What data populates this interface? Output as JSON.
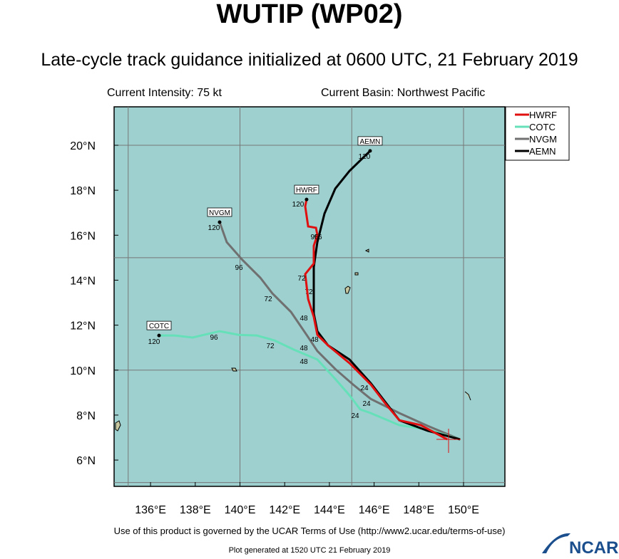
{
  "title": "WUTIP (WP02)",
  "subtitle": "Late-cycle track guidance initialized at 0600 UTC, 21 February 2019",
  "intensity": "Current Intensity: 75 kt",
  "basin": "Current Basin: Northwest Pacific",
  "footer": "Use of this product is governed by the UCAR Terms of Use (http://www2.ucar.edu/terms-of-use)",
  "generated": "Plot generated at 1520 UTC  21 February 2019",
  "logo": "NCAR",
  "map": {
    "xlim": [
      134.37,
      151.85
    ],
    "ylim": [
      4.83,
      21.71
    ],
    "xticks": [
      {
        "value": 136,
        "label": "136°E"
      },
      {
        "value": 138,
        "label": "138°E"
      },
      {
        "value": 140,
        "label": "140°E"
      },
      {
        "value": 142,
        "label": "142°E"
      },
      {
        "value": 144,
        "label": "144°E"
      },
      {
        "value": 146,
        "label": "146°E"
      },
      {
        "value": 148,
        "label": "148°E"
      },
      {
        "value": 150,
        "label": "150°E"
      }
    ],
    "yticks": [
      {
        "value": 6,
        "label": "6°N"
      },
      {
        "value": 8,
        "label": "8°N"
      },
      {
        "value": 10,
        "label": "10°N"
      },
      {
        "value": 12,
        "label": "12°N"
      },
      {
        "value": 14,
        "label": "14°N"
      },
      {
        "value": 16,
        "label": "16°N"
      },
      {
        "value": 18,
        "label": "18°N"
      },
      {
        "value": 20,
        "label": "20°N"
      }
    ],
    "grid_lons": [
      135,
      140,
      145,
      150
    ],
    "grid_lats": [
      5,
      10,
      15,
      20
    ],
    "tracks": [
      {
        "name": "HWRF",
        "color": "#e01010",
        "lon": [
          149.27,
          148.09,
          147.13,
          146.49,
          145.85,
          144.9,
          143.94,
          143.46,
          143.3,
          143.05,
          142.92,
          143.3,
          143.3,
          143.46,
          143.4,
          143.05,
          142.92,
          142.98
        ],
        "lat": [
          6.92,
          7.55,
          7.77,
          8.53,
          9.36,
          10.31,
          11.1,
          11.57,
          12.37,
          13.16,
          14.27,
          14.74,
          15.53,
          16.01,
          16.33,
          16.39,
          17.28,
          17.59
        ],
        "hour_labels": [
          "120",
          "96",
          "72",
          "48"
        ]
      },
      {
        "name": "COTC",
        "color": "#66e0b8",
        "lon": [
          149.84,
          148.4,
          147.13,
          145.85,
          145.38,
          144.9,
          144.26,
          143.46,
          142.41,
          141.55,
          140.75,
          139.95,
          139.09,
          137.88,
          137.08,
          136.38
        ],
        "lat": [
          6.92,
          7.36,
          7.55,
          8.09,
          8.25,
          8.88,
          9.61,
          10.47,
          10.91,
          11.32,
          11.54,
          11.57,
          11.73,
          11.45,
          11.54,
          11.54
        ],
        "hour_labels": [
          "120",
          "96",
          "72",
          "48",
          "24"
        ]
      },
      {
        "name": "NVGM",
        "color": "#707070",
        "lon": [
          149.84,
          148.4,
          147.13,
          145.85,
          145.06,
          144.26,
          143.46,
          142.98,
          142.28,
          141.45,
          140.91,
          140.11,
          139.41,
          139.09
        ],
        "lat": [
          6.92,
          7.52,
          8.09,
          8.72,
          9.36,
          10.05,
          10.85,
          11.57,
          12.59,
          13.41,
          14.11,
          14.9,
          15.69,
          16.58
        ],
        "hour_labels": [
          "120",
          "96",
          "72",
          "48",
          "24"
        ]
      },
      {
        "name": "AEMN",
        "color": "#000000",
        "lon": [
          149.84,
          148.4,
          147.13,
          145.85,
          144.9,
          143.94,
          143.46,
          143.3,
          143.3,
          143.46,
          143.78,
          144.26,
          144.9,
          145.82
        ],
        "lat": [
          6.92,
          7.3,
          7.77,
          9.42,
          10.47,
          11.1,
          11.73,
          12.52,
          14.58,
          15.69,
          16.96,
          18.07,
          18.86,
          19.75
        ],
        "hour_labels": [
          "120",
          "96",
          "72",
          "48",
          "24"
        ]
      }
    ]
  }
}
